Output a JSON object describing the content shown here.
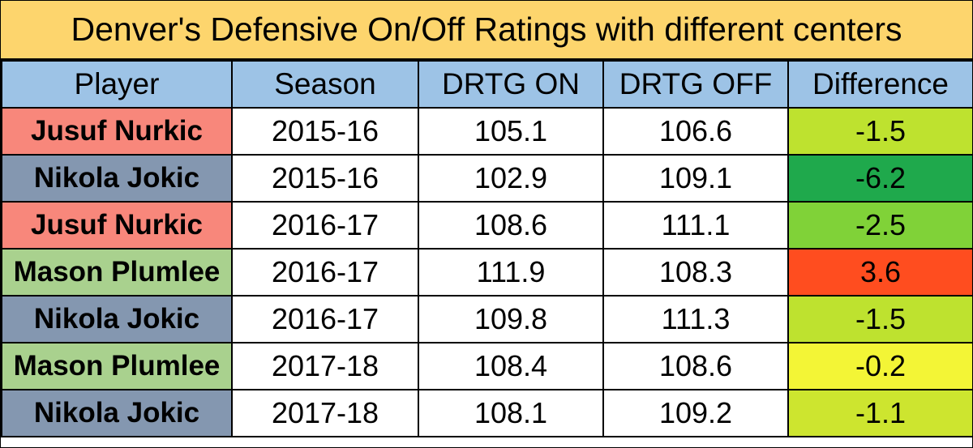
{
  "colors": {
    "title_bg": "#fdd56d",
    "header_bg": "#9dc3e6",
    "player_bg": {
      "Jusuf Nurkic": "#f8877b",
      "Nikola Jokic": "#8497b0",
      "Mason Plumlee": "#a9d18e"
    }
  },
  "chart_data": {
    "type": "table",
    "title": "Denver's Defensive On/Off Ratings with different centers",
    "columns": [
      "Player",
      "Season",
      "DRTG ON",
      "DRTG OFF",
      "Difference"
    ],
    "rows": [
      {
        "player": "Jusuf Nurkic",
        "season": "2015-16",
        "on": "105.1",
        "off": "106.6",
        "diff": "-1.5",
        "diff_color": "#bee22f"
      },
      {
        "player": "Nikola Jokic",
        "season": "2015-16",
        "on": "102.9",
        "off": "109.1",
        "diff": "-6.2",
        "diff_color": "#1fa94c"
      },
      {
        "player": "Jusuf Nurkic",
        "season": "2016-17",
        "on": "108.6",
        "off": "111.1",
        "diff": "-2.5",
        "diff_color": "#80d238"
      },
      {
        "player": "Mason Plumlee",
        "season": "2016-17",
        "on": "111.9",
        "off": "108.3",
        "diff": "3.6",
        "diff_color": "#ff4d1f"
      },
      {
        "player": "Nikola Jokic",
        "season": "2016-17",
        "on": "109.8",
        "off": "111.3",
        "diff": "-1.5",
        "diff_color": "#bee22f"
      },
      {
        "player": "Mason Plumlee",
        "season": "2017-18",
        "on": "108.4",
        "off": "108.6",
        "diff": "-0.2",
        "diff_color": "#f3f536"
      },
      {
        "player": "Nikola Jokic",
        "season": "2017-18",
        "on": "108.1",
        "off": "109.2",
        "diff": "-1.1",
        "diff_color": "#cde52f"
      }
    ]
  }
}
